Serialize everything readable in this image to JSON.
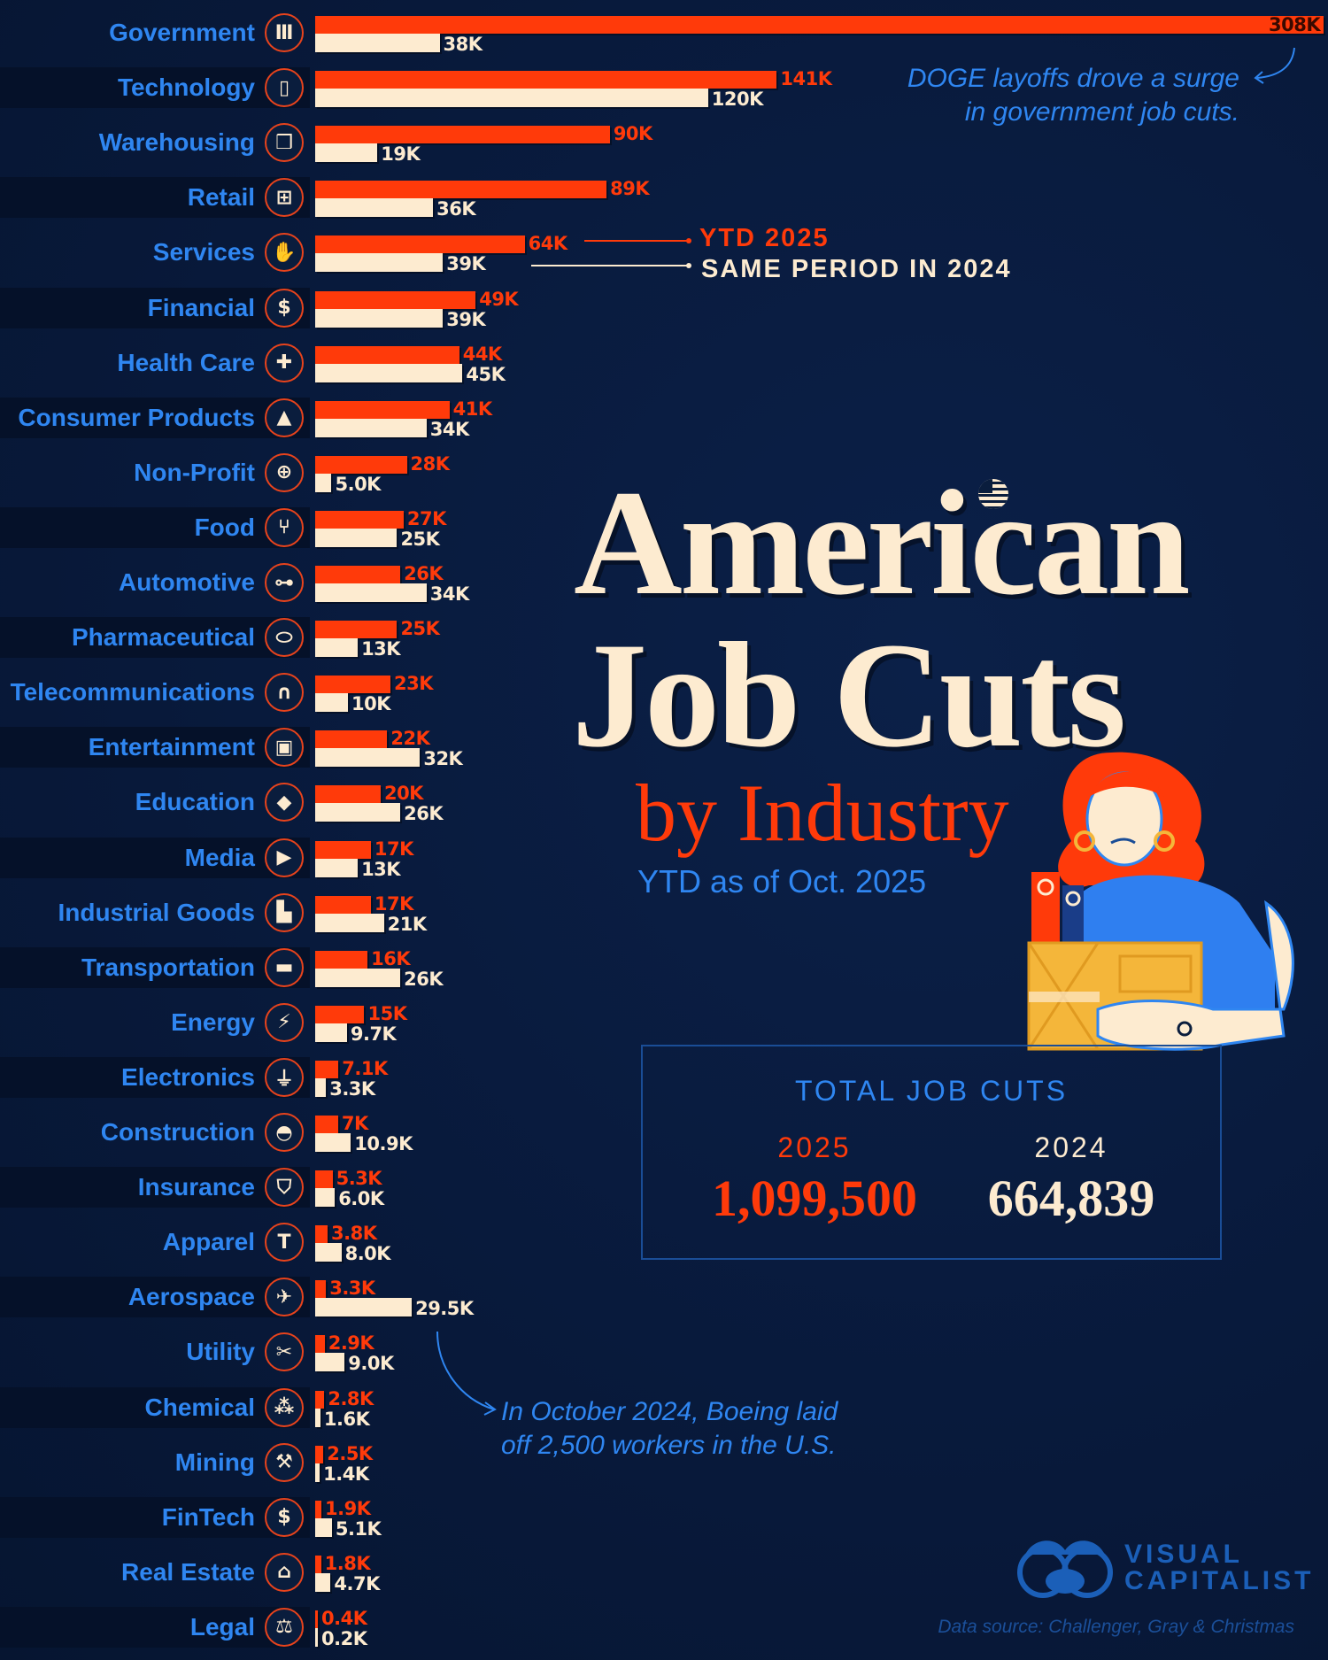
{
  "title": {
    "line1": "American",
    "line2": "Job Cuts",
    "line3": "by Industry",
    "subtitle": "YTD as of Oct. 2025"
  },
  "legend": {
    "series_2025": "YTD 2025",
    "series_2024": "SAME PERIOD IN 2024"
  },
  "annotations": {
    "doge_line1": "DOGE layoffs drove a surge",
    "doge_line2": "in government job cuts.",
    "boeing_line1": "In October 2024, Boeing laid",
    "boeing_line2": "off 2,500 workers in the U.S."
  },
  "totals": {
    "title": "TOTAL JOB CUTS",
    "year_2025": "2025",
    "value_2025": "1,099,500",
    "year_2024": "2024",
    "value_2024": "664,839"
  },
  "logo": {
    "line1": "VISUAL",
    "line2": "CAPITALIST"
  },
  "source": "Data source: Challenger, Gray & Christmas",
  "colors": {
    "background": "#08193a",
    "series_2025": "#ff3a0a",
    "series_2024": "#fdebd0",
    "label": "#2f86f1"
  },
  "chart_data": {
    "type": "bar",
    "orientation": "horizontal",
    "unit": "thousands of job cuts",
    "series": [
      {
        "name": "YTD 2025",
        "color": "#ff3a0a"
      },
      {
        "name": "SAME PERIOD IN 2024",
        "color": "#fdebd0"
      }
    ],
    "rows": [
      {
        "category": "Government",
        "icon": "government-building-icon",
        "v2025": 308,
        "l2025": "308K",
        "v2024": 38,
        "l2024": "38K"
      },
      {
        "category": "Technology",
        "icon": "smartphone-icon",
        "v2025": 141,
        "l2025": "141K",
        "v2024": 120,
        "l2024": "120K"
      },
      {
        "category": "Warehousing",
        "icon": "box-icon",
        "v2025": 90,
        "l2025": "90K",
        "v2024": 19,
        "l2024": "19K"
      },
      {
        "category": "Retail",
        "icon": "shopping-cart-icon",
        "v2025": 89,
        "l2025": "89K",
        "v2024": 36,
        "l2024": "36K"
      },
      {
        "category": "Services",
        "icon": "hand-icon",
        "v2025": 64,
        "l2025": "64K",
        "v2024": 39,
        "l2024": "39K"
      },
      {
        "category": "Financial",
        "icon": "dollar-icon",
        "v2025": 49,
        "l2025": "49K",
        "v2024": 39,
        "l2024": "39K"
      },
      {
        "category": "Health Care",
        "icon": "heart-plus-icon",
        "v2025": 44,
        "l2025": "44K",
        "v2024": 45,
        "l2024": "45K"
      },
      {
        "category": "Consumer Products",
        "icon": "shopping-bag-icon",
        "v2025": 41,
        "l2025": "41K",
        "v2024": 34,
        "l2024": "34K"
      },
      {
        "category": "Non-Profit",
        "icon": "globe-icon",
        "v2025": 28,
        "l2025": "28K",
        "v2024": 5.0,
        "l2024": "5.0K"
      },
      {
        "category": "Food",
        "icon": "fork-knife-icon",
        "v2025": 27,
        "l2025": "27K",
        "v2024": 25,
        "l2024": "25K"
      },
      {
        "category": "Automotive",
        "icon": "car-icon",
        "v2025": 26,
        "l2025": "26K",
        "v2024": 34,
        "l2024": "34K"
      },
      {
        "category": "Pharmaceutical",
        "icon": "pill-icon",
        "v2025": 25,
        "l2025": "25K",
        "v2024": 13,
        "l2024": "13K"
      },
      {
        "category": "Telecommunications",
        "icon": "headset-icon",
        "v2025": 23,
        "l2025": "23K",
        "v2024": 10,
        "l2024": "10K"
      },
      {
        "category": "Entertainment",
        "icon": "video-camera-icon",
        "v2025": 22,
        "l2025": "22K",
        "v2024": 32,
        "l2024": "32K"
      },
      {
        "category": "Education",
        "icon": "graduation-cap-icon",
        "v2025": 20,
        "l2025": "20K",
        "v2024": 26,
        "l2024": "26K"
      },
      {
        "category": "Media",
        "icon": "play-icon",
        "v2025": 17,
        "l2025": "17K",
        "v2024": 13,
        "l2024": "13K"
      },
      {
        "category": "Industrial Goods",
        "icon": "factory-icon",
        "v2025": 17,
        "l2025": "17K",
        "v2024": 21,
        "l2024": "21K"
      },
      {
        "category": "Transportation",
        "icon": "truck-icon",
        "v2025": 16,
        "l2025": "16K",
        "v2024": 26,
        "l2024": "26K"
      },
      {
        "category": "Energy",
        "icon": "lightning-icon",
        "v2025": 15,
        "l2025": "15K",
        "v2024": 9.7,
        "l2024": "9.7K"
      },
      {
        "category": "Electronics",
        "icon": "plug-icon",
        "v2025": 7.1,
        "l2025": "7.1K",
        "v2024": 3.3,
        "l2024": "3.3K"
      },
      {
        "category": "Construction",
        "icon": "hard-hat-icon",
        "v2025": 7,
        "l2025": "7K",
        "v2024": 10.9,
        "l2024": "10.9K"
      },
      {
        "category": "Insurance",
        "icon": "shield-icon",
        "v2025": 5.3,
        "l2025": "5.3K",
        "v2024": 6.0,
        "l2024": "6.0K"
      },
      {
        "category": "Apparel",
        "icon": "tshirt-icon",
        "v2025": 3.8,
        "l2025": "3.8K",
        "v2024": 8.0,
        "l2024": "8.0K"
      },
      {
        "category": "Aerospace",
        "icon": "airplane-icon",
        "v2025": 3.3,
        "l2025": "3.3K",
        "v2024": 29.5,
        "l2024": "29.5K"
      },
      {
        "category": "Utility",
        "icon": "tools-icon",
        "v2025": 2.9,
        "l2025": "2.9K",
        "v2024": 9.0,
        "l2024": "9.0K"
      },
      {
        "category": "Chemical",
        "icon": "molecule-icon",
        "v2025": 2.8,
        "l2025": "2.8K",
        "v2024": 1.6,
        "l2024": "1.6K"
      },
      {
        "category": "Mining",
        "icon": "pickaxe-icon",
        "v2025": 2.5,
        "l2025": "2.5K",
        "v2024": 1.4,
        "l2024": "1.4K"
      },
      {
        "category": "FinTech",
        "icon": "chip-dollar-icon",
        "v2025": 1.9,
        "l2025": "1.9K",
        "v2024": 5.1,
        "l2024": "5.1K"
      },
      {
        "category": "Real Estate",
        "icon": "house-icon",
        "v2025": 1.8,
        "l2025": "1.8K",
        "v2024": 4.7,
        "l2024": "4.7K"
      },
      {
        "category": "Legal",
        "icon": "gavel-icon",
        "v2025": 0.4,
        "l2025": "0.4K",
        "v2024": 0.2,
        "l2024": "0.2K"
      }
    ]
  }
}
